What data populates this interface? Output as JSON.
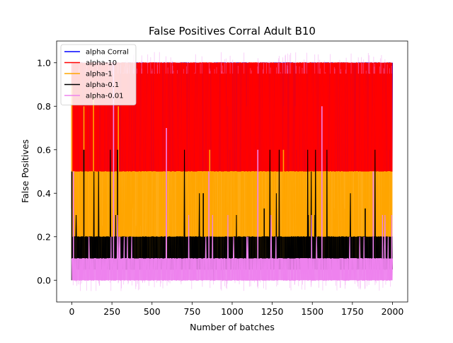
{
  "chart_data": {
    "type": "line",
    "title": "False Positives Corral Adult B10",
    "xlabel": "Number of batches",
    "ylabel": "False Positives",
    "xlim": [
      -95,
      2095
    ],
    "ylim": [
      -0.1,
      1.1
    ],
    "x_ticks": [
      0,
      250,
      500,
      750,
      1000,
      1250,
      1500,
      1750,
      2000
    ],
    "y_ticks": [
      0.0,
      0.2,
      0.4,
      0.6,
      0.8,
      1.0
    ],
    "x_tick_labels": [
      "0",
      "250",
      "500",
      "750",
      "1000",
      "1250",
      "1500",
      "1750",
      "2000"
    ],
    "y_tick_labels": [
      "0.0",
      "0.2",
      "0.4",
      "0.6",
      "0.8",
      "1.0"
    ],
    "grid": false,
    "legend_position": "top-left",
    "x_range": [
      0,
      2000
    ],
    "series": [
      {
        "name": "alpha Corral",
        "color": "#0000ff",
        "levels": [
          0.5,
          0.6,
          0.8,
          1.0
        ],
        "band": [
          0.5,
          1.0
        ],
        "spikes": [
          [
            410,
            0.97,
            1.0
          ],
          [
            560,
            0.95,
            1.0
          ],
          [
            960,
            0.93,
            1.0
          ],
          [
            1180,
            0.94,
            1.0
          ],
          [
            1500,
            0.92,
            1.0
          ],
          [
            1650,
            0.95,
            1.0
          ],
          [
            70,
            0.81,
            1.0
          ]
        ]
      },
      {
        "name": "alpha-10",
        "color": "#ff0000",
        "levels": [
          0.5,
          0.6,
          0.8,
          1.0
        ],
        "band": [
          0.5,
          1.0
        ],
        "spikes": [
          [
            0,
            0.33,
            1.0
          ],
          [
            50,
            0.5,
            1.0
          ],
          [
            120,
            0.6,
            1.0
          ],
          [
            260,
            0.5,
            1.0
          ],
          [
            560,
            0.5,
            1.0
          ],
          [
            860,
            0.5,
            1.0
          ],
          [
            1400,
            0.6,
            1.0
          ],
          [
            1880,
            0.5,
            1.0
          ]
        ]
      },
      {
        "name": "alpha-1",
        "color": "#ffa500",
        "levels": [
          0.1,
          0.2,
          0.25,
          0.33,
          0.4,
          0.5
        ],
        "band": [
          0.1,
          0.5
        ],
        "spikes": [
          [
            0,
            0.1,
            0.9
          ],
          [
            75,
            0.2,
            0.8
          ],
          [
            135,
            0.2,
            0.85
          ],
          [
            290,
            0.25,
            0.8
          ],
          [
            860,
            0.2,
            0.6
          ],
          [
            1320,
            0.2,
            0.6
          ],
          [
            1850,
            0.2,
            0.5
          ]
        ]
      },
      {
        "name": "alpha-0.1",
        "color": "#000000",
        "levels": [
          0.0,
          0.1,
          0.2,
          0.3,
          0.4,
          0.5,
          0.6
        ],
        "band": [
          0.05,
          0.2
        ],
        "spikes": [
          [
            0,
            0.0,
            0.5
          ],
          [
            75,
            0.2,
            0.6
          ],
          [
            285,
            0.2,
            0.6
          ],
          [
            820,
            0.1,
            0.4
          ],
          [
            1200,
            0.2,
            0.33
          ],
          [
            1375,
            0.1,
            0.2
          ],
          [
            1830,
            0.1,
            0.33
          ]
        ]
      },
      {
        "name": "alpha-0.01",
        "color": "#ee82ee",
        "levels": [
          0.0,
          0.1,
          0.2,
          0.3
        ],
        "band": [
          0.0,
          0.1
        ],
        "spikes": [
          [
            10,
            0.0,
            0.5
          ],
          [
            260,
            0.1,
            1.0
          ],
          [
            590,
            0.1,
            0.7
          ],
          [
            855,
            0.1,
            0.5
          ],
          [
            1160,
            0.1,
            0.6
          ],
          [
            1560,
            0.1,
            0.8
          ],
          [
            1880,
            0.1,
            0.5
          ]
        ]
      }
    ]
  }
}
